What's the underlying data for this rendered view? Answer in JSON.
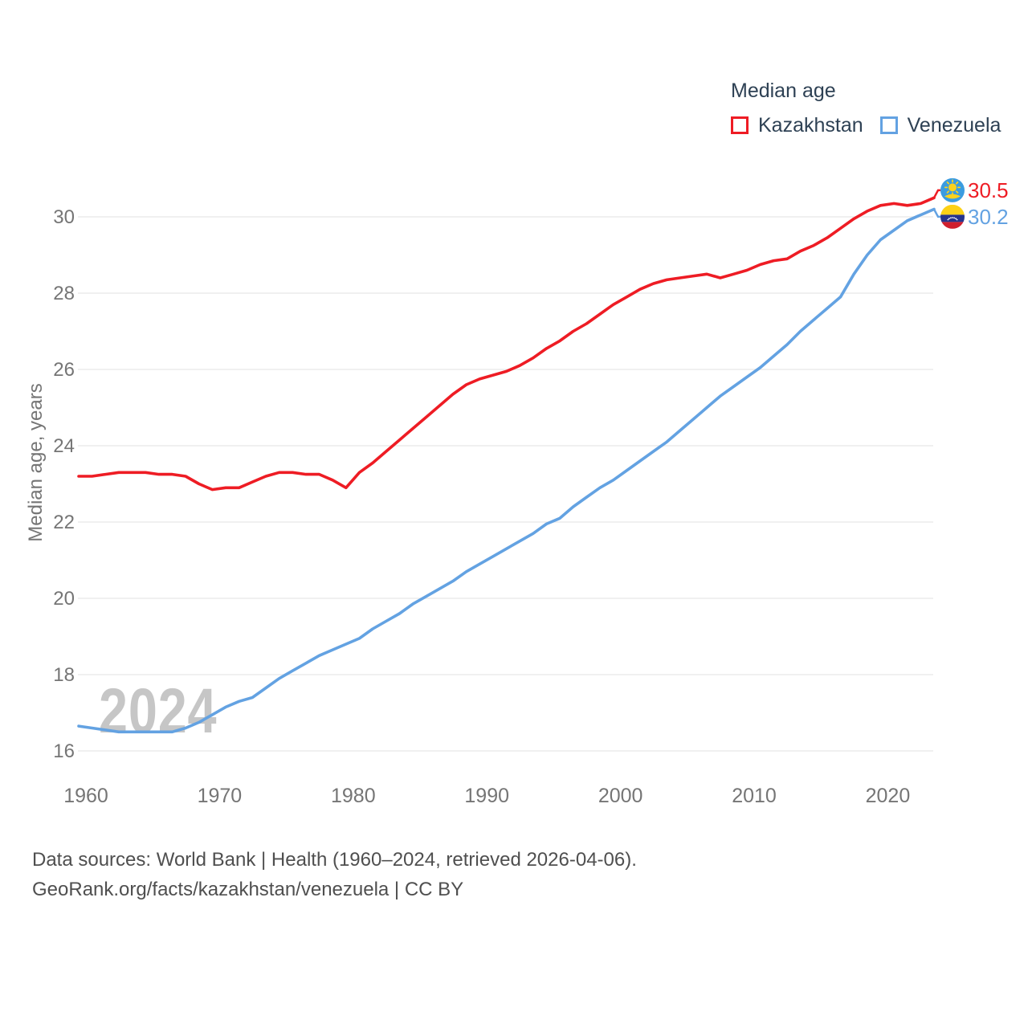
{
  "chart_data": {
    "type": "line",
    "legend_title": "Median age",
    "ylabel": "Median age, years",
    "watermark": "2024",
    "x_start": 1960,
    "x_end": 2024,
    "xticks": [
      1960,
      1970,
      1980,
      1990,
      2000,
      2010,
      2020
    ],
    "yticks": [
      16,
      18,
      20,
      22,
      24,
      26,
      28,
      30
    ],
    "xlim": [
      1960,
      2024
    ],
    "ylim": [
      16,
      31
    ],
    "grid": "horizontal-only",
    "legend_position": "top-right",
    "years": [
      1960,
      1961,
      1962,
      1963,
      1964,
      1965,
      1966,
      1967,
      1968,
      1969,
      1970,
      1971,
      1972,
      1973,
      1974,
      1975,
      1976,
      1977,
      1978,
      1979,
      1980,
      1981,
      1982,
      1983,
      1984,
      1985,
      1986,
      1987,
      1988,
      1989,
      1990,
      1991,
      1992,
      1993,
      1994,
      1995,
      1996,
      1997,
      1998,
      1999,
      2000,
      2001,
      2002,
      2003,
      2004,
      2005,
      2006,
      2007,
      2008,
      2009,
      2010,
      2011,
      2012,
      2013,
      2014,
      2015,
      2016,
      2017,
      2018,
      2019,
      2020,
      2021,
      2022,
      2023,
      2024
    ],
    "series": [
      {
        "name": "Kazakhstan",
        "color": "#ee1c24",
        "end_label": "30.5",
        "flag": "kazakhstan",
        "values": [
          23.2,
          23.2,
          23.25,
          23.3,
          23.3,
          23.3,
          23.25,
          23.25,
          23.2,
          23.0,
          22.85,
          22.9,
          22.9,
          23.05,
          23.2,
          23.3,
          23.3,
          23.25,
          23.25,
          23.1,
          22.9,
          23.3,
          23.55,
          23.85,
          24.15,
          24.45,
          24.75,
          25.05,
          25.35,
          25.6,
          25.75,
          25.85,
          25.95,
          26.1,
          26.3,
          26.55,
          26.75,
          27.0,
          27.2,
          27.45,
          27.7,
          27.9,
          28.1,
          28.25,
          28.35,
          28.4,
          28.45,
          28.5,
          28.4,
          28.5,
          28.6,
          28.75,
          28.85,
          28.9,
          29.1,
          29.25,
          29.45,
          29.7,
          29.95,
          30.15,
          30.3,
          30.35,
          30.3,
          30.35,
          30.5
        ]
      },
      {
        "name": "Venezuela",
        "color": "#63a2e2",
        "end_label": "30.2",
        "flag": "venezuela",
        "values": [
          16.65,
          16.6,
          16.55,
          16.5,
          16.5,
          16.5,
          16.5,
          16.5,
          16.6,
          16.75,
          16.95,
          17.15,
          17.3,
          17.4,
          17.65,
          17.9,
          18.1,
          18.3,
          18.5,
          18.65,
          18.8,
          18.95,
          19.2,
          19.4,
          19.6,
          19.85,
          20.05,
          20.25,
          20.45,
          20.7,
          20.9,
          21.1,
          21.3,
          21.5,
          21.7,
          21.95,
          22.1,
          22.4,
          22.65,
          22.9,
          23.1,
          23.35,
          23.6,
          23.85,
          24.1,
          24.4,
          24.7,
          25.0,
          25.3,
          25.55,
          25.8,
          26.05,
          26.35,
          26.65,
          27.0,
          27.3,
          27.6,
          27.9,
          28.5,
          29.0,
          29.4,
          29.65,
          29.9,
          30.05,
          30.2
        ]
      }
    ]
  },
  "footer": {
    "line1": "Data sources: World Bank | Health (1960–2024, retrieved 2026-04-06).",
    "line2": "GeoRank.org/facts/kazakhstan/venezuela | CC BY"
  }
}
